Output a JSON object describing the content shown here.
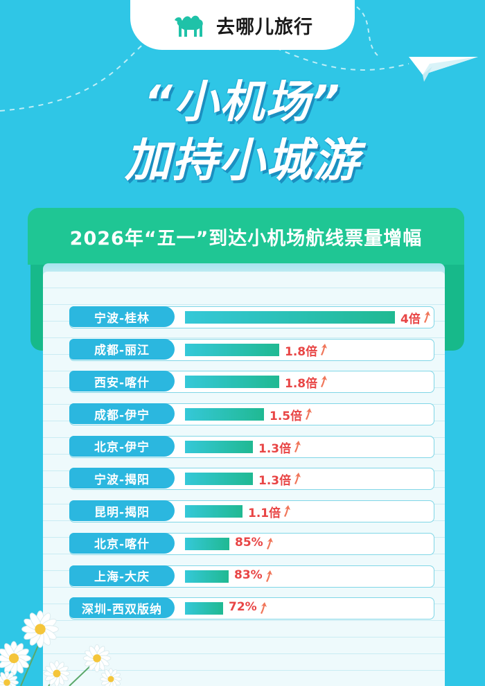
{
  "brand": {
    "name": "去哪儿旅行",
    "logo_icon": "camel-icon",
    "logo_color": "#1fc2a8"
  },
  "headline": {
    "line1": "“小机场”",
    "line2": "加持小城游"
  },
  "colors": {
    "background": "#2fc6e6",
    "band": "#1fc694",
    "label_pill": "#2bb7df",
    "bar_start": "#35c8d8",
    "bar_end": "#20b992",
    "value_text": "#e84545"
  },
  "chart_data": {
    "type": "bar",
    "orientation": "horizontal",
    "title": "2026年“五一”到达小机场航线票量增幅",
    "categories": [
      "宁波-桂林",
      "成都-丽江",
      "西安-喀什",
      "成都-伊宁",
      "北京-伊宁",
      "宁波-揭阳",
      "昆明-揭阳",
      "北京-喀什",
      "上海-大庆",
      "深圳-西双版纳"
    ],
    "values": [
      4,
      1.8,
      1.8,
      1.5,
      1.3,
      1.3,
      1.1,
      0.85,
      0.83,
      0.72
    ],
    "value_labels": [
      "4倍",
      "1.8倍",
      "1.8倍",
      "1.5倍",
      "1.3倍",
      "1.3倍",
      "1.1倍",
      "85%",
      "83%",
      "72%"
    ],
    "xlim": [
      0,
      4
    ],
    "xlabel": "",
    "ylabel": "",
    "grid": false,
    "legend": "none"
  }
}
